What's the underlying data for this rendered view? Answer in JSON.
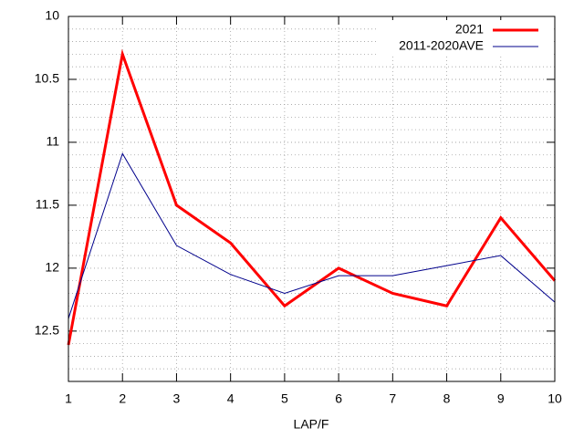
{
  "chart_data": {
    "type": "line",
    "x_label": "LAP/F",
    "x": [
      1,
      2,
      3,
      4,
      5,
      6,
      7,
      8,
      9,
      10
    ],
    "series": [
      {
        "name": "2021",
        "color": "#ff0000",
        "values": [
          12.61,
          10.3,
          11.5,
          11.8,
          12.3,
          12.0,
          12.2,
          12.3,
          11.6,
          12.1
        ]
      },
      {
        "name": "2011-2020AVE",
        "color": "#00008b",
        "values": [
          12.4,
          11.09,
          11.82,
          12.05,
          12.2,
          12.06,
          12.06,
          11.98,
          11.9,
          12.27
        ]
      }
    ],
    "xlim": [
      1,
      10
    ],
    "xticks": [
      1,
      2,
      3,
      4,
      5,
      6,
      7,
      8,
      9,
      10
    ],
    "ylim": [
      10,
      12.9
    ],
    "yticks": [
      10,
      10.5,
      11,
      11.5,
      12,
      12.5
    ],
    "y_reversed": true,
    "grid": true,
    "legend": "top-right"
  }
}
